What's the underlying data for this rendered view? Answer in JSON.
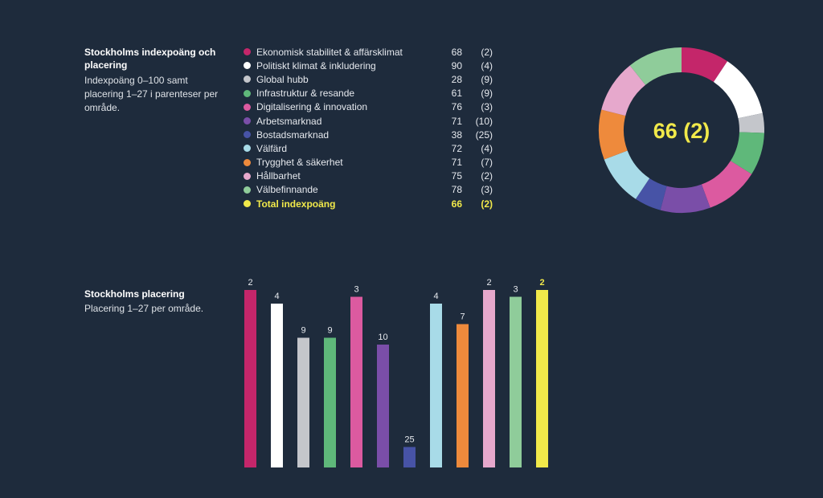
{
  "section1": {
    "title": "Stockholms indexpoäng och placering",
    "desc": "Indexpoäng 0–100 samt placering 1–27 i parenteser per område."
  },
  "section2": {
    "title": "Stockholms placering",
    "desc": "Placering 1–27 per område."
  },
  "chart_data": [
    {
      "type": "pie",
      "title": "Stockholms indexpoäng och placering",
      "center_label": "66 (2)",
      "categories": [
        "Ekonomisk stabilitet & affärsklimat",
        "Politiskt klimat & inkludering",
        "Global hubb",
        "Infrastruktur & resande",
        "Digitalisering & innovation",
        "Arbetsmarknad",
        "Bostadsmarknad",
        "Välfärd",
        "Trygghet & säkerhet",
        "Hållbarhet",
        "Välbefinnande"
      ],
      "values": [
        68,
        90,
        28,
        61,
        76,
        71,
        38,
        72,
        71,
        75,
        78
      ],
      "ranks": [
        "(2)",
        "(4)",
        "(9)",
        "(9)",
        "(3)",
        "(10)",
        "(25)",
        "(4)",
        "(7)",
        "(2)",
        "(3)"
      ],
      "colors": [
        "#c4266a",
        "#ffffff",
        "#c4c6cb",
        "#5fb87a",
        "#dc5aa0",
        "#7a4ea8",
        "#4753a6",
        "#a8dbe8",
        "#ee8a3c",
        "#e6a8cc",
        "#8fcc9a"
      ],
      "total": {
        "label": "Total indexpoäng",
        "value": 66,
        "rank": "(2)",
        "color": "#f1e94a"
      }
    },
    {
      "type": "bar",
      "title": "Stockholms placering",
      "ylabel": "Placering",
      "ylim": [
        1,
        27
      ],
      "categories": [
        "Ekonomisk stabilitet & affärsklimat",
        "Politiskt klimat & inkludering",
        "Global hubb",
        "Infrastruktur & resande",
        "Digitalisering & innovation",
        "Arbetsmarknad",
        "Bostadsmarknad",
        "Välfärd",
        "Trygghet & säkerhet",
        "Hållbarhet",
        "Välbefinnande",
        "Total indexpoäng"
      ],
      "values": [
        2,
        4,
        9,
        9,
        3,
        10,
        25,
        4,
        7,
        2,
        3,
        2
      ],
      "colors": [
        "#c4266a",
        "#ffffff",
        "#c4c6cb",
        "#5fb87a",
        "#dc5aa0",
        "#7a4ea8",
        "#4753a6",
        "#a8dbe8",
        "#ee8a3c",
        "#e6a8cc",
        "#8fcc9a",
        "#f1e94a"
      ]
    }
  ]
}
